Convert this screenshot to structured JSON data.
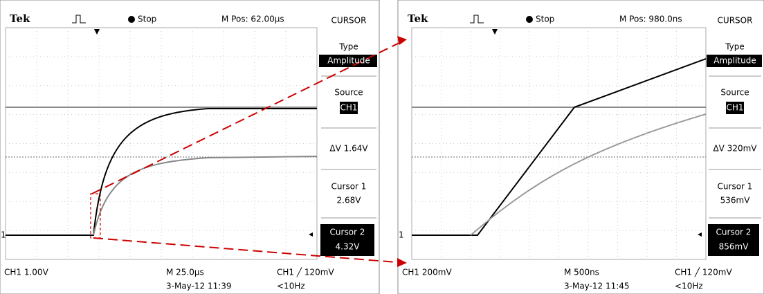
{
  "scopes": [
    {
      "brand": "Tek",
      "status": "Stop",
      "position": "M Pos: 62.00µs",
      "marker": "1",
      "menu": {
        "title": "CURSOR",
        "type_label": "Type",
        "type_value": "Amplitude",
        "source_label": "Source",
        "source_value": "CH1",
        "delta": "ΔV 1.64V",
        "cursor1_label": "Cursor 1",
        "cursor1_value": "2.68V",
        "cursor2_label": "Cursor 2",
        "cursor2_value": "4.32V"
      },
      "footer": {
        "channel": "CH1  1.00V",
        "timebase": "M 25.0µs",
        "trigger": "CH1 ╱ 120mV",
        "date": "3-May-12 11:39",
        "frequency": "<10Hz"
      }
    },
    {
      "brand": "Tek",
      "status": "Stop",
      "position": "M Pos: 980.0ns",
      "marker": "1",
      "menu": {
        "title": "CURSOR",
        "type_label": "Type",
        "type_value": "Amplitude",
        "source_label": "Source",
        "source_value": "CH1",
        "delta": "ΔV 320mV",
        "cursor1_label": "Cursor 1",
        "cursor1_value": "536mV",
        "cursor2_label": "Cursor 2",
        "cursor2_value": "856mV"
      },
      "footer": {
        "channel": "CH1  200mV",
        "timebase": "M 500ns",
        "trigger": "CH1 ╱ 120mV",
        "date": "3-May-12 11:45",
        "frequency": "<10Hz"
      }
    }
  ]
}
